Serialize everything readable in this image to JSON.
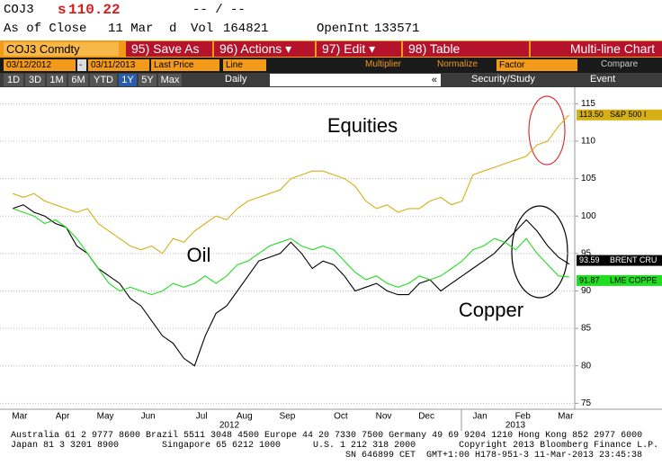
{
  "header": {
    "ticker": "COJ3",
    "price_symbol": "s",
    "price": "110.22",
    "change": "-- / --",
    "as_of": "As of Close",
    "date": "11 Mar",
    "d": "d",
    "vol_label": "Vol",
    "vol": "164821",
    "oi_label": "OpenInt",
    "oi": "133571"
  },
  "toolbar": {
    "security": "COJ3 Comdty",
    "buttons": [
      "95) Save As",
      "96) Actions ▾",
      "97) Edit ▾",
      "98) Table"
    ],
    "view": "Multi-line Chart"
  },
  "controls": {
    "start": "03/12/2012",
    "dash": "-",
    "end": "03/11/2013",
    "field": "Last Price",
    "style": "Line",
    "multiplier": "Multiplier",
    "normalize": "Normalize",
    "factor": "Factor",
    "compare": "Compare"
  },
  "periods": {
    "items": [
      "1D",
      "3D",
      "1M",
      "6M",
      "YTD",
      "1Y",
      "5Y",
      "Max"
    ],
    "frequency": "Daily",
    "arrow": "«",
    "security_study": "Security/Study",
    "event": "Event"
  },
  "footer": [
    "Australia 61 2 9777 8600 Brazil 5511 3048 4500 Europe 44 20 7330 7500 Germany 49 69 9204 1210 Hong Kong 852 2977 6000",
    "Japan 81 3 3201 8900        Singapore 65 6212 1000      U.S. 1 212 318 2000        Copyright 2013 Bloomberg Finance L.P.",
    "SN 646899 CET  GMT+1:00 H178-951-3 11-Mar-2013 23:45:38"
  ],
  "chart_data": {
    "type": "line",
    "categories": [
      null,
      "Mar",
      null,
      null,
      null,
      "Apr",
      null,
      null,
      null,
      "May",
      null,
      null,
      null,
      "Jun",
      null,
      null,
      null,
      null,
      "Jul",
      null,
      null,
      null,
      "Aug",
      null,
      null,
      null,
      "Sep",
      null,
      null,
      null,
      null,
      "Oct",
      null,
      null,
      null,
      "Nov",
      null,
      null,
      null,
      "Dec",
      null,
      null,
      null,
      null,
      "Jan",
      null,
      null,
      null,
      "Feb",
      null,
      null,
      null,
      "Mar"
    ],
    "year_labels": [
      "2012",
      "2013"
    ],
    "series": [
      {
        "name": "S&P 500 I",
        "last_label": "113.50",
        "color": "#d4b016",
        "values": [
          103,
          102.5,
          103,
          102,
          101.5,
          101,
          100.5,
          101,
          99,
          98,
          97,
          96,
          95.5,
          96,
          95,
          97,
          96.5,
          98,
          99,
          100,
          99.5,
          101,
          102,
          102.5,
          103,
          103.5,
          105,
          105.5,
          106,
          106,
          105.5,
          105,
          104,
          102,
          101,
          101.5,
          100.5,
          101,
          101,
          102,
          102.5,
          101.5,
          102,
          105.5,
          106,
          106.5,
          107,
          107.5,
          108,
          109.5,
          110,
          112,
          113.5
        ]
      },
      {
        "name": "BRENT CRU",
        "last_label": "93.59",
        "color": "#000000",
        "values": [
          101,
          101.5,
          100.5,
          100,
          99,
          98.5,
          96,
          95,
          93,
          92,
          91,
          89,
          88,
          86,
          84,
          83,
          81,
          80,
          84,
          87,
          88,
          90,
          92,
          94,
          94.5,
          95,
          96.5,
          95,
          93,
          94,
          93.5,
          92,
          90,
          90.5,
          91,
          90,
          89.5,
          89.5,
          91,
          91.5,
          90,
          91,
          92,
          93,
          94,
          95,
          96.5,
          98,
          99.5,
          98,
          96,
          94.5,
          93.59
        ]
      },
      {
        "name": "LME COPPE",
        "last_label": "91.87",
        "color": "#22dd22",
        "values": [
          101,
          100.5,
          100,
          99,
          99.5,
          98.5,
          97,
          95,
          93,
          91,
          90,
          90.5,
          90,
          89.5,
          90,
          91,
          90.5,
          91,
          92,
          91,
          92,
          93.5,
          94,
          95,
          96,
          96.5,
          97,
          96,
          95.5,
          96,
          95.5,
          94,
          92.5,
          91.5,
          92,
          91,
          90.5,
          91,
          92,
          91.5,
          92,
          93,
          94,
          95.5,
          96,
          97,
          96.5,
          95.5,
          97,
          95,
          93.5,
          92,
          91.87
        ]
      }
    ],
    "annotations": [
      "Equities",
      "Oil",
      "Copper"
    ],
    "ylim": [
      74.2,
      117.2
    ],
    "yticks": [
      75,
      80,
      85,
      90,
      95,
      100,
      105,
      110,
      115
    ],
    "grid": true
  }
}
